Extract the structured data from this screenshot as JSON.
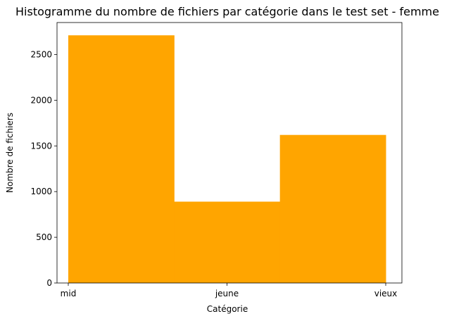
{
  "chart_data": {
    "type": "bar",
    "title": "Histogramme du nombre de fichiers par catégorie dans le test set - femme",
    "xlabel": "Catégorie",
    "ylabel": "Nombre de fichiers",
    "categories": [
      "mid",
      "jeune",
      "vieux"
    ],
    "values": [
      2710,
      890,
      1620
    ],
    "yticks": [
      0,
      500,
      1000,
      1500,
      2000,
      2500
    ],
    "ylim": [
      0,
      2850
    ],
    "bar_color": "#ffa500",
    "grid": false,
    "legend": "none"
  }
}
